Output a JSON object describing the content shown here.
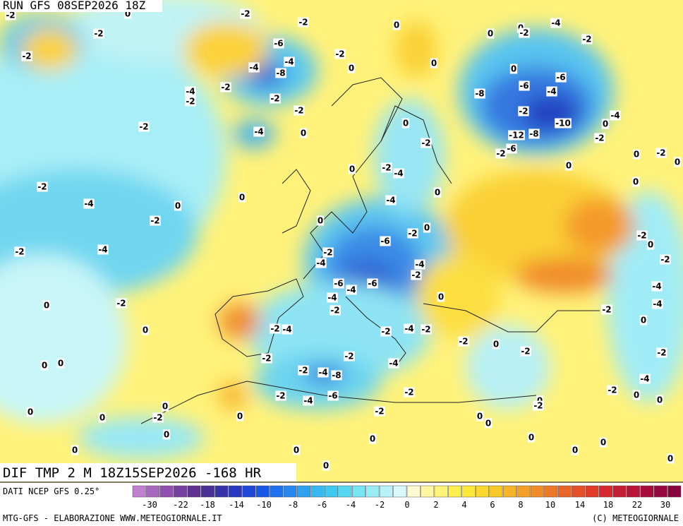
{
  "header": {
    "run": "RUN GFS 08SEP2026 18Z",
    "field": "DIF TMP 2 M 18Z15SEP2026 -168 HR"
  },
  "footer": {
    "source": "DATI NCEP GFS 0.25°",
    "credit": "MTG-GFS - ELABORAZIONE WWW.METEOGIORNALE.IT",
    "copyright": "(C) METEOGIORNALE"
  },
  "colorbar": {
    "colors": [
      "#c080d0",
      "#a868c0",
      "#9050b0",
      "#7840a0",
      "#603090",
      "#483098",
      "#3830a8",
      "#2838c0",
      "#2048d8",
      "#1858e8",
      "#2070f0",
      "#2888f0",
      "#30a0f0",
      "#38b8f0",
      "#40c8f0",
      "#58d8f0",
      "#78e4f4",
      "#98ecf6",
      "#b8f2f8",
      "#d8f8fa",
      "#fffad0",
      "#fff8a0",
      "#fff478",
      "#fff050",
      "#fce838",
      "#fad830",
      "#f8c828",
      "#f6b428",
      "#f4a028",
      "#f08c28",
      "#ec7828",
      "#e86428",
      "#e45028",
      "#e03c28",
      "#d82830",
      "#c81c34",
      "#b81438",
      "#a80c3c",
      "#980840",
      "#880440"
    ],
    "labels": [
      -30,
      -22,
      -18,
      -14,
      -10,
      -8,
      -6,
      -4,
      -2,
      0,
      2,
      4,
      6,
      8,
      10,
      14,
      18,
      22,
      30
    ]
  },
  "contour_labels": [
    -2,
    -2,
    -2,
    -2,
    -2,
    -6,
    -4,
    -8,
    -4,
    -4,
    -2,
    -2,
    -2,
    -2,
    -2,
    -4,
    0,
    0,
    -2,
    0,
    0,
    0,
    -2,
    0,
    -2,
    -4,
    0,
    -4,
    0,
    -2,
    -4,
    0,
    -2,
    0,
    -2,
    -4,
    -2,
    -4,
    -6,
    -2,
    0,
    -4,
    -2,
    -6,
    -4,
    -6,
    -4,
    -2,
    0,
    0,
    -2,
    0,
    -2,
    -4,
    -2,
    -4,
    -2,
    -2,
    0,
    -2,
    -2,
    -2,
    -4,
    -2,
    -4,
    -8,
    -2,
    -4,
    -6,
    -2,
    -2,
    0,
    0,
    0,
    0,
    0,
    -2,
    0,
    0,
    0,
    0,
    0,
    0,
    0,
    0,
    0,
    0,
    0,
    -2,
    -4,
    -2,
    0,
    0,
    -6,
    -6,
    -4,
    -8,
    -2,
    -10,
    -12,
    -8,
    -6,
    -2,
    0,
    -2,
    -4,
    0,
    0,
    -2,
    0,
    0,
    -2,
    0,
    -2,
    -4,
    -4,
    -2,
    0,
    -2,
    -4,
    -2,
    0,
    0,
    0,
    0,
    -2,
    0,
    0
  ]
}
